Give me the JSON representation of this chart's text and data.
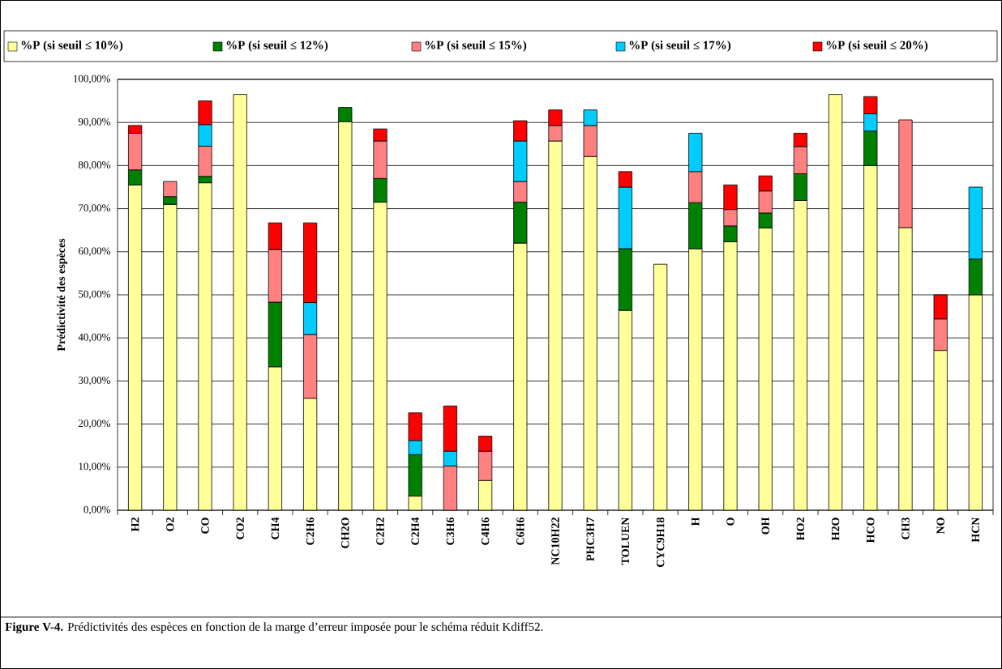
{
  "chart_data": {
    "type": "bar",
    "stacked": true,
    "ylabel": "Prédictivité des espèces",
    "categories": [
      "H2",
      "O2",
      "CO",
      "CO2",
      "CH4",
      "C2H6",
      "CH2O",
      "C2H2",
      "C2H4",
      "C3H6",
      "C4H6",
      "C6H6",
      "NC10H22",
      "PHC3H7",
      "TOLUEN",
      "CYC9H18",
      "H",
      "O",
      "OH",
      "HO2",
      "H2O",
      "HCO",
      "CH3",
      "NO",
      "HCN"
    ],
    "series": [
      {
        "name": "%P (si seuil ≤ 10%)",
        "color": "#ffff99",
        "values": [
          75.5,
          71,
          76,
          96.5,
          33.3,
          26,
          90.2,
          71.5,
          3.3,
          null,
          6.9,
          62,
          85.7,
          82.1,
          46.4,
          57.1,
          60.7,
          62.3,
          65.5,
          71.9,
          96.5,
          80,
          65.6,
          37.1,
          50
        ]
      },
      {
        "name": "%P (si seuil ≤ 12%)",
        "color": "#008000",
        "values": [
          3.5,
          1.8,
          1.5,
          null,
          15,
          null,
          3.3,
          5.5,
          9.6,
          null,
          null,
          9.5,
          null,
          null,
          14.3,
          null,
          10.7,
          3.7,
          3.5,
          6.2,
          null,
          8,
          null,
          null,
          8.3
        ]
      },
      {
        "name": "%P (si seuil ≤ 15%)",
        "color": "#ff8080",
        "values": [
          8.5,
          3.5,
          7,
          null,
          12.2,
          14.8,
          null,
          8.7,
          null,
          10.3,
          6.8,
          4.8,
          3.6,
          7.2,
          null,
          null,
          7.2,
          3.8,
          5.1,
          6.3,
          null,
          null,
          25,
          7.3,
          null
        ]
      },
      {
        "name": "%P (si seuil ≤ 17%)",
        "color": "#00ccff",
        "values": [
          null,
          null,
          5,
          null,
          null,
          7.4,
          null,
          null,
          3.3,
          3.4,
          null,
          9.4,
          null,
          3.6,
          14.3,
          null,
          8.9,
          null,
          null,
          null,
          null,
          4,
          null,
          null,
          16.7
        ]
      },
      {
        "name": "%P (si seuil ≤ 20%)",
        "color": "#ff0000",
        "values": [
          1.8,
          null,
          5.5,
          null,
          6.2,
          18.5,
          null,
          2.8,
          6.4,
          10.5,
          3.5,
          4.7,
          3.6,
          null,
          3.6,
          null,
          null,
          5.7,
          3.5,
          3.1,
          null,
          4,
          null,
          5.6,
          null
        ]
      }
    ],
    "ylim": [
      0,
      100
    ],
    "yticks": [
      {
        "value": 0,
        "label": "0,00%"
      },
      {
        "value": 10,
        "label": "10,00%"
      },
      {
        "value": 20,
        "label": "20,00%"
      },
      {
        "value": 30,
        "label": "30,00%"
      },
      {
        "value": 40,
        "label": "40,00%"
      },
      {
        "value": 50,
        "label": "50,00%"
      },
      {
        "value": 60,
        "label": "60,00%"
      },
      {
        "value": 70,
        "label": "70,00%"
      },
      {
        "value": 80,
        "label": "80,00%"
      },
      {
        "value": 90,
        "label": "90,00%"
      },
      {
        "value": 100,
        "label": "100,00%"
      }
    ],
    "grid": "y",
    "legend": "top",
    "annotations": [
      "**Figure V-4.** Prédictivités des espèces en fonction de la marge d’erreur imposée pour le schéma réduit Kdiff52."
    ]
  }
}
